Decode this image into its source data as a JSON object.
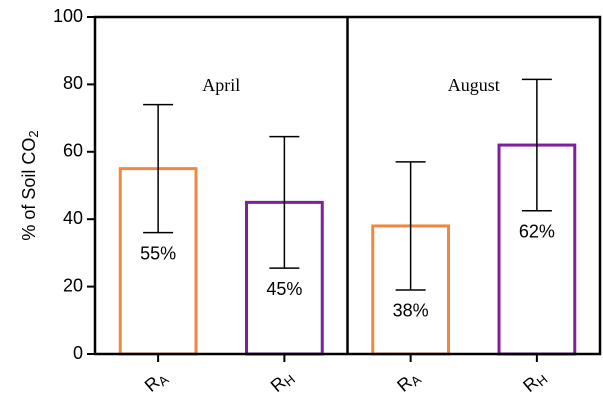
{
  "chart_data": {
    "type": "bar",
    "ylabel": "% of Soil CO2",
    "groups": [
      "April",
      "August"
    ],
    "categories": [
      "RA",
      "RH",
      "RA",
      "RH"
    ],
    "values": [
      55,
      45,
      38,
      62
    ],
    "errors": [
      19,
      19.5,
      19,
      19.5
    ],
    "value_labels": [
      "55%",
      "45%",
      "38%",
      "62%"
    ],
    "colors": [
      "#f4873f",
      "#7f1fa0",
      "#f4873f",
      "#7f1fa0"
    ],
    "ylim": [
      0,
      100
    ],
    "yticks": [
      0,
      20,
      40,
      60,
      80,
      100
    ]
  }
}
